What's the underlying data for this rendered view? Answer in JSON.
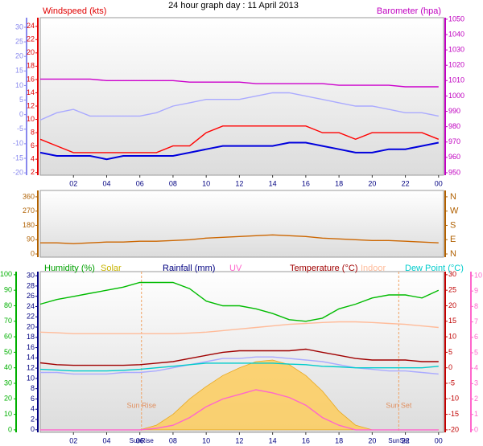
{
  "title": "24 hour graph day : 11 April 2013",
  "chart_data": [
    {
      "type": "line",
      "ylabel": "Windspeed (kts)",
      "y2label": "Barometer (hpa)",
      "x": [
        0,
        1,
        2,
        3,
        4,
        5,
        6,
        7,
        8,
        9,
        10,
        11,
        12,
        13,
        14,
        15,
        16,
        17,
        18,
        19,
        20,
        21,
        22,
        23,
        24
      ],
      "xlim": [
        0,
        24.3
      ],
      "xticks": [
        {
          "value": 2,
          "label": "02"
        },
        {
          "value": 4,
          "label": "04"
        },
        {
          "value": 6,
          "label": "06"
        },
        {
          "value": 8,
          "label": "08"
        },
        10,
        12,
        14,
        16,
        18,
        20,
        22,
        {
          "value": 24,
          "label": "00"
        }
      ],
      "ylim": [
        1.6,
        25.3
      ],
      "yticks": [
        2,
        4,
        6,
        8,
        10,
        12,
        14,
        16,
        18,
        20,
        22,
        24
      ],
      "y2lim": [
        948.4,
        1051
      ],
      "y2ticks": [
        950,
        960,
        970,
        980,
        990,
        1000,
        1010,
        1020,
        1030,
        1040,
        1050
      ],
      "y3lim": [
        -20.8,
        33.3
      ],
      "y3ticks": [
        -20,
        -15,
        -10,
        -5,
        0,
        5,
        10,
        15,
        20,
        25,
        30
      ],
      "axis_colors": {
        "y": "#e00000",
        "y2": "#c000c0",
        "y3": "#8888ee"
      },
      "series": [
        {
          "color": "#aaaaff",
          "axis": "y",
          "values": [
            9.9,
            11,
            11.5,
            10.5,
            10.5,
            10.5,
            10.5,
            11,
            12,
            12.5,
            13,
            13,
            13,
            13.5,
            14,
            14,
            13.5,
            13,
            12.5,
            12,
            12,
            11.5,
            11,
            11,
            10.5
          ]
        },
        {
          "name": "Windspeed (kts)",
          "color": "#ff0000",
          "axis": "y",
          "values": [
            7,
            6,
            5,
            5,
            5,
            5,
            5,
            5,
            6,
            6,
            8,
            9,
            9,
            9,
            9,
            9,
            9,
            8,
            8,
            7,
            8,
            8,
            8,
            8,
            7
          ]
        },
        {
          "color": "#0000dd",
          "axis": "y",
          "values": [
            5,
            4.5,
            4.5,
            4.5,
            4,
            4.5,
            4.5,
            4.5,
            4.5,
            5,
            5.5,
            6,
            6,
            6,
            6,
            6.5,
            6.5,
            6,
            5.5,
            5,
            5,
            5.5,
            5.5,
            6,
            6.5
          ]
        },
        {
          "name": "Barometer (hpa)",
          "color": "#cc00cc",
          "axis": "y2",
          "values": [
            1011,
            1011,
            1011,
            1011,
            1010,
            1010,
            1010,
            1010,
            1010,
            1009,
            1009,
            1009,
            1009,
            1008,
            1008,
            1008,
            1008,
            1008,
            1007,
            1007,
            1007,
            1007,
            1006,
            1006,
            1006
          ]
        }
      ]
    },
    {
      "type": "line",
      "x": [
        0,
        1,
        2,
        3,
        4,
        5,
        6,
        7,
        8,
        9,
        10,
        11,
        12,
        13,
        14,
        15,
        16,
        17,
        18,
        19,
        20,
        21,
        22,
        23,
        24
      ],
      "xlim": [
        0,
        24.3
      ],
      "ylim": [
        -20,
        400
      ],
      "yticks": [
        0,
        90,
        180,
        270,
        360
      ],
      "y2lim": [
        -20,
        400
      ],
      "y2ticks": [
        {
          "value": 0,
          "label": "N"
        },
        {
          "value": 90,
          "label": "E"
        },
        {
          "value": 180,
          "label": "S"
        },
        {
          "value": 270,
          "label": "W"
        },
        {
          "value": 360,
          "label": "N"
        }
      ],
      "axis_colors": {
        "y": "#b06000",
        "y2": "#b06000"
      },
      "series": [
        {
          "color": "#cc6600",
          "axis": "y",
          "values": [
            70,
            70,
            65,
            70,
            75,
            75,
            80,
            80,
            85,
            90,
            100,
            105,
            110,
            115,
            120,
            115,
            110,
            100,
            95,
            90,
            85,
            85,
            80,
            75,
            70
          ]
        }
      ]
    },
    {
      "type": "line",
      "legend": [
        {
          "text": "Humidity (%)",
          "color": "#00a000"
        },
        {
          "text": "Solar",
          "color": "#c8b400"
        },
        {
          "text": "Rainfall (mm)",
          "color": "#000080"
        },
        {
          "text": "UV",
          "color": "#ff66cc"
        },
        {
          "text": "Temperature (°C)",
          "color": "#a00000"
        },
        {
          "text": "Indoor",
          "color": "#ffbb99"
        },
        {
          "text": "Dew Point (°C)",
          "color": "#00cccc"
        }
      ],
      "x": [
        0,
        1,
        2,
        3,
        4,
        5,
        6,
        7,
        8,
        9,
        10,
        11,
        12,
        13,
        14,
        15,
        16,
        17,
        18,
        19,
        20,
        21,
        22,
        23,
        24
      ],
      "xlim": [
        0,
        24.3
      ],
      "xticks": [
        {
          "value": 2,
          "label": "02"
        },
        {
          "value": 4,
          "label": "04"
        },
        {
          "value": 6,
          "label": "06"
        },
        {
          "value": 8,
          "label": "08"
        },
        10,
        12,
        14,
        16,
        18,
        20,
        22,
        {
          "value": 24,
          "label": "00"
        }
      ],
      "ylim": [
        -1.6,
        102
      ],
      "yticks": [
        0,
        10,
        20,
        30,
        40,
        50,
        60,
        70,
        80,
        90,
        100
      ],
      "y3lim": [
        -0.5,
        30.8
      ],
      "y3ticks": [
        0,
        2,
        4,
        6,
        8,
        10,
        12,
        14,
        16,
        18,
        20,
        22,
        24,
        26,
        28,
        30
      ],
      "y2lim": [
        -20.8,
        31
      ],
      "y2ticks": [
        -20,
        -15,
        -10,
        -5,
        0,
        5,
        10,
        15,
        20,
        25,
        30
      ],
      "y4lim": [
        -0.16,
        10.26
      ],
      "y4ticks": [
        0,
        1,
        2,
        3,
        4,
        5,
        6,
        7,
        8,
        9,
        10
      ],
      "axis_colors": {
        "y": "#00b000",
        "y3": "#000080",
        "y2": "#c00000",
        "y4": "#ff66cc"
      },
      "annotations": [
        {
          "text": "Sun Rise",
          "axis_text": "SunRise",
          "x": 6.1
        },
        {
          "text": "Sun Set",
          "axis_text": "SunSet",
          "x": 21.6
        }
      ],
      "series": [
        {
          "name": "Solar",
          "type": "area",
          "color": "#ffcc55",
          "axis": "y",
          "values": [
            0,
            0,
            0,
            0,
            0,
            0,
            0,
            3,
            10,
            20,
            28,
            35,
            40,
            44,
            45,
            42,
            35,
            25,
            12,
            3,
            0,
            0,
            0,
            0,
            0
          ]
        },
        {
          "name": "Indoor",
          "color": "#ffbb99",
          "axis": "y2",
          "values": [
            11.5,
            11.3,
            11,
            11,
            11,
            11,
            11,
            11,
            11,
            11.2,
            11.5,
            12,
            12.5,
            13,
            13.5,
            14,
            14.3,
            14.6,
            14.8,
            14.8,
            14.6,
            14.3,
            14,
            13.5,
            13
          ]
        },
        {
          "color": "#aaaaff",
          "axis": "y2",
          "values": [
            -1.5,
            -1.5,
            -2,
            -2,
            -2,
            -1.5,
            -1.5,
            -1,
            0,
            1,
            2,
            3,
            3,
            3.5,
            3.5,
            3,
            2.5,
            2,
            1,
            0,
            -0.5,
            -1,
            -1,
            -1.5,
            -2
          ]
        },
        {
          "name": "Dew Point (°C)",
          "color": "#00cccc",
          "axis": "y2",
          "values": [
            -0.5,
            -0.7,
            -1,
            -1,
            -1,
            -0.8,
            -0.5,
            0,
            0.5,
            1,
            1.5,
            1.5,
            1.5,
            1.5,
            1.5,
            1.2,
            1,
            0.5,
            0.3,
            0,
            0,
            0,
            0,
            0,
            0.5
          ]
        },
        {
          "name": "Temperature (°C)",
          "color": "#a00000",
          "axis": "y2",
          "values": [
            1.6,
            1,
            0.8,
            0.8,
            0.8,
            0.8,
            1,
            1.5,
            2,
            3,
            4,
            5,
            5.5,
            5.5,
            5.5,
            5.5,
            6,
            5,
            4,
            3,
            2.5,
            2.5,
            2.5,
            2,
            2
          ]
        },
        {
          "name": "UV",
          "color": "#ff66cc",
          "axis": "y4",
          "values": [
            0,
            0,
            0,
            0,
            0,
            0,
            0,
            0.1,
            0.3,
            0.8,
            1.5,
            2,
            2.3,
            2.6,
            2.4,
            2.1,
            1.6,
            0.8,
            0.3,
            0,
            0,
            0,
            0,
            0,
            0
          ]
        },
        {
          "name": "Humidity (%)",
          "color": "#00bb00",
          "axis": "y",
          "values": [
            81,
            84,
            86,
            88,
            90,
            92,
            95,
            95,
            95,
            91,
            83,
            80,
            80,
            78,
            75,
            71,
            70,
            72,
            78,
            81,
            85,
            87,
            87,
            85,
            90
          ]
        }
      ]
    }
  ]
}
